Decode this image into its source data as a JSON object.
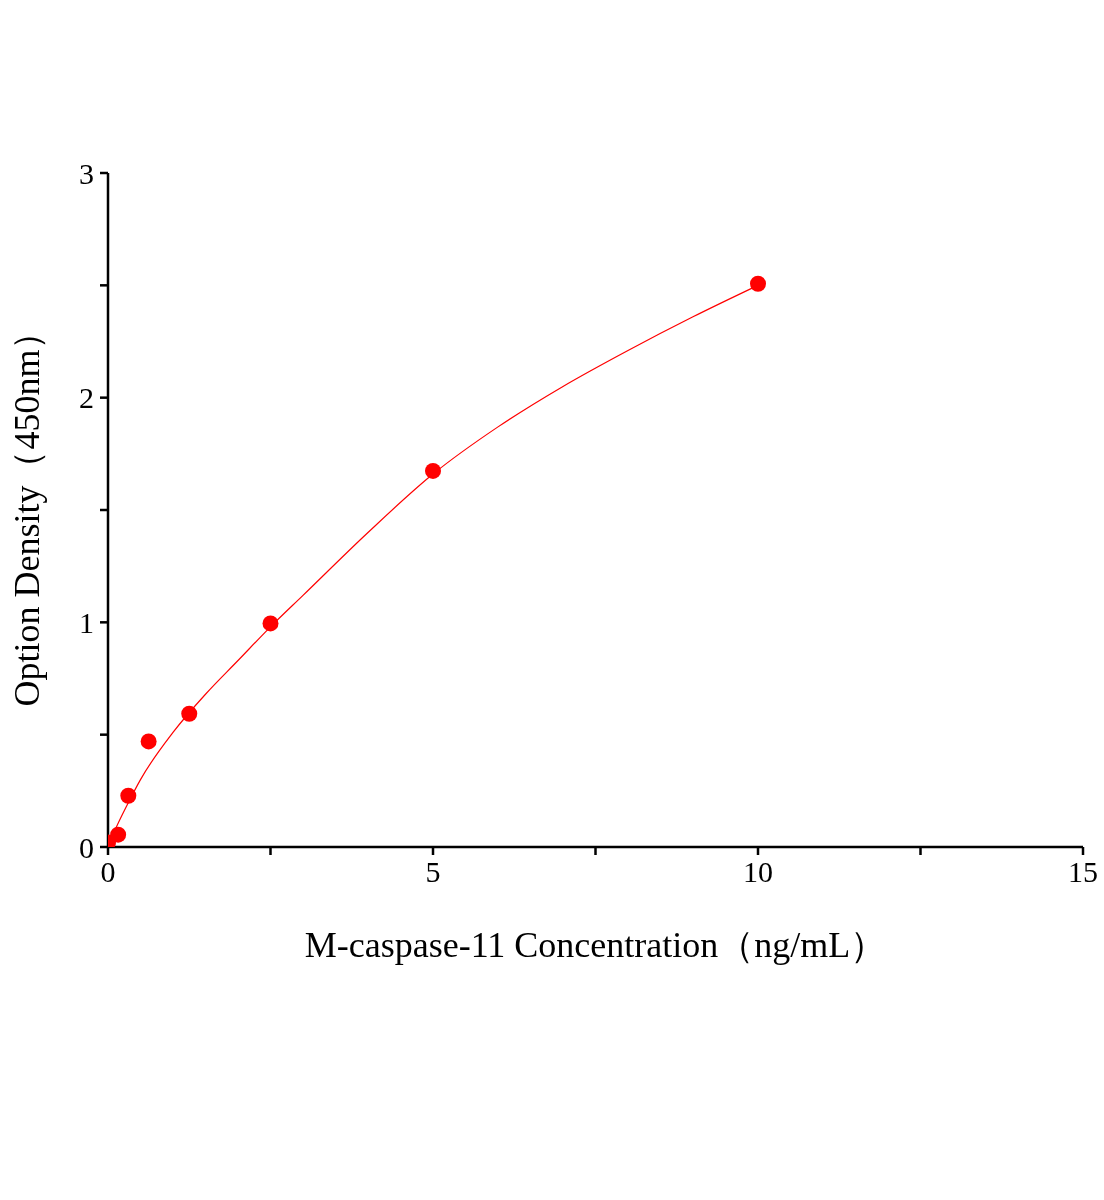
{
  "chart_data": {
    "type": "scatter",
    "xlabel": "M-caspase-11 Concentration（ng/mL）",
    "ylabel": "Option Density（450nm）",
    "xlim": [
      0,
      15
    ],
    "ylim": [
      0,
      3
    ],
    "xticks": [
      0,
      {
        "value": 2.5,
        "label": null
      },
      5,
      {
        "value": 7.5,
        "label": null
      },
      10,
      {
        "value": 12.5,
        "label": null
      },
      15
    ],
    "yticks": [
      0,
      {
        "value": 0.5,
        "label": null
      },
      1,
      {
        "value": 1.5,
        "label": null
      },
      2,
      {
        "value": 2.5,
        "label": null
      },
      3
    ],
    "series": [
      {
        "color": "#ff0000",
        "marker": "circle",
        "x": [
          0,
          0.156,
          0.3125,
          0.625,
          1.25,
          2.5,
          5,
          10
        ],
        "values": [
          0.02,
          0.055,
          0.228,
          0.47,
          0.593,
          0.995,
          1.674,
          2.507
        ]
      },
      {
        "type": "line",
        "color": "#ff0000",
        "marker": "none",
        "x": [
          0,
          0.1,
          0.3,
          0.5,
          1,
          1.5,
          2,
          2.5,
          3,
          4,
          5,
          6,
          7,
          8,
          9,
          10
        ],
        "values": [
          0,
          0.07,
          0.19,
          0.3,
          0.51,
          0.68,
          0.83,
          0.98,
          1.12,
          1.4,
          1.66,
          1.87,
          2.05,
          2.21,
          2.36,
          2.5
        ]
      }
    ]
  }
}
